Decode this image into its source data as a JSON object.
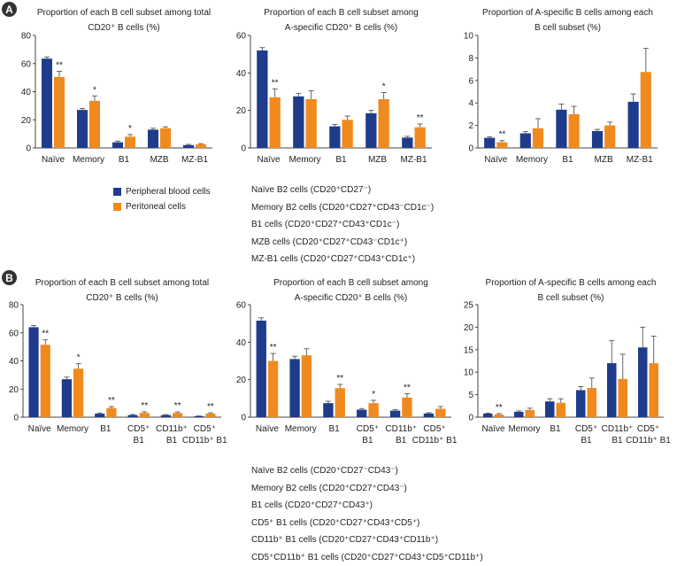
{
  "colors": {
    "peripheral": "#1F3C8C",
    "peritoneal": "#F08A1E",
    "axis": "#444444"
  },
  "legend": {
    "items": [
      "Peripheral blood cells",
      "Peritoneal cells"
    ]
  },
  "panels": [
    {
      "label": "A",
      "definitions": [
        "Naïve B2 cells (CD20⁺CD27⁻)",
        "Memory B2 cells (CD20⁺CD27⁺CD43⁻CD1c⁻)",
        "B1 cells (CD20⁺CD27⁺CD43⁺CD1c⁻)",
        "MZB cells (CD20⁺CD27⁺CD43⁻CD1c⁺)",
        "MZ-B1 cells (CD20⁺CD27⁺CD43⁺CD1c⁺)"
      ]
    },
    {
      "label": "B",
      "definitions": [
        "Naïve B2 cells (CD20⁺CD27⁻CD43⁻)",
        "Memory B2 cells (CD20⁺CD27⁺CD43⁻)",
        "B1 cells (CD20⁺CD27⁺CD43⁺)",
        "CD5⁺ B1 cells (CD20⁺CD27⁺CD43⁺CD5⁺)",
        "CD11b⁺ B1 cells (CD20⁺CD27⁺CD43⁺CD11b⁺)",
        "CD5⁺CD11b⁺ B1 cells (CD20⁺CD27⁺CD43⁺CD5⁺CD11b⁺)"
      ]
    }
  ],
  "chart_data": [
    {
      "id": "A1",
      "type": "bar",
      "title": [
        "Proportion of each B cell subset among total",
        "CD20⁺ B cells (%)"
      ],
      "categories": [
        [
          "Naïve"
        ],
        [
          "Memory"
        ],
        [
          "B1"
        ],
        [
          "MZB"
        ],
        [
          "MZ-B1"
        ]
      ],
      "yticks": [
        0,
        20,
        40,
        60,
        80
      ],
      "ylim": [
        0,
        80
      ],
      "series": [
        {
          "name": "Peripheral blood cells",
          "values": [
            63.5,
            27,
            4,
            13,
            2
          ],
          "errors": [
            1.2,
            1,
            0.8,
            1,
            0.5
          ]
        },
        {
          "name": "Peritoneal cells",
          "values": [
            50.5,
            33.5,
            8,
            14,
            2.5
          ],
          "errors": [
            4,
            3.5,
            1.5,
            1,
            0.5
          ]
        }
      ],
      "annotations": [
        "**",
        "*",
        "*",
        "",
        ""
      ]
    },
    {
      "id": "A2",
      "type": "bar",
      "title": [
        "Proportion of each B cell subset among",
        "A-specific CD20⁺ B cells (%)"
      ],
      "categories": [
        [
          "Naïve"
        ],
        [
          "Memory"
        ],
        [
          "B1"
        ],
        [
          "MZB"
        ],
        [
          "MZ-B1"
        ]
      ],
      "yticks": [
        0,
        20,
        40,
        60
      ],
      "ylim": [
        0,
        60
      ],
      "series": [
        {
          "name": "Peripheral blood cells",
          "values": [
            52,
            27.5,
            11.5,
            18.5,
            5.5
          ],
          "errors": [
            1.5,
            1.5,
            1,
            1.5,
            0.7
          ]
        },
        {
          "name": "Peritoneal cells",
          "values": [
            27,
            26,
            15,
            26,
            11
          ],
          "errors": [
            4.5,
            4.5,
            2,
            3.5,
            1.8
          ]
        }
      ],
      "annotations": [
        "**",
        "",
        "",
        "*",
        "**"
      ]
    },
    {
      "id": "A3",
      "type": "bar",
      "title": [
        "Proportion of A-specific B cells among each",
        "B cell subset (%)"
      ],
      "categories": [
        [
          "Naïve"
        ],
        [
          "Memory"
        ],
        [
          "B1"
        ],
        [
          "MZB"
        ],
        [
          "MZ-B1"
        ]
      ],
      "yticks": [
        0,
        2,
        4,
        6,
        8,
        10
      ],
      "ylim": [
        0,
        10
      ],
      "series": [
        {
          "name": "Peripheral blood cells",
          "values": [
            0.9,
            1.3,
            3.4,
            1.5,
            4.1
          ],
          "errors": [
            0.1,
            0.15,
            0.5,
            0.15,
            0.7
          ]
        },
        {
          "name": "Peritoneal cells",
          "values": [
            0.5,
            1.75,
            3,
            2,
            6.75
          ],
          "errors": [
            0.15,
            0.85,
            0.7,
            0.3,
            2.1
          ]
        }
      ],
      "annotations": [
        "**",
        "",
        "",
        "",
        ""
      ]
    },
    {
      "id": "B1",
      "type": "bar",
      "title": [
        "Proportion of each B cell subset among total",
        "CD20⁺ B cells (%)"
      ],
      "categories": [
        [
          "Naïve"
        ],
        [
          "Memory"
        ],
        [
          "B1"
        ],
        [
          "CD5⁺",
          "B1"
        ],
        [
          "CD11b⁺",
          "B1"
        ],
        [
          "CD5⁺",
          "CD11b⁺ B1"
        ]
      ],
      "yticks": [
        0,
        20,
        40,
        60,
        80
      ],
      "ylim": [
        0,
        80
      ],
      "series": [
        {
          "name": "Peripheral blood cells",
          "values": [
            64,
            27,
            2.5,
            1.5,
            1.5,
            0.7
          ],
          "errors": [
            1.2,
            1.5,
            0.5,
            0.4,
            0.3,
            0.2
          ]
        },
        {
          "name": "Peritoneal cells",
          "values": [
            51.5,
            34.5,
            6.5,
            3,
            3,
            2.5
          ],
          "errors": [
            3.5,
            3.5,
            1,
            0.8,
            0.7,
            0.6
          ]
        }
      ],
      "annotations": [
        "**",
        "*",
        "**",
        "**",
        "**",
        "**"
      ]
    },
    {
      "id": "B2",
      "type": "bar",
      "title": [
        "Proportion of each B cell subset among",
        "A-specific CD20⁺ B cells (%)"
      ],
      "categories": [
        [
          "Naïve"
        ],
        [
          "Memory"
        ],
        [
          "B1"
        ],
        [
          "CD5⁺",
          "B1"
        ],
        [
          "CD11b⁺",
          "B1"
        ],
        [
          "CD5⁺",
          "CD11b⁺ B1"
        ]
      ],
      "yticks": [
        0,
        20,
        40,
        60
      ],
      "ylim": [
        0,
        60
      ],
      "series": [
        {
          "name": "Peripheral blood cells",
          "values": [
            51.5,
            31,
            7.5,
            4,
            3.5,
            2
          ],
          "errors": [
            1.5,
            1.5,
            1,
            0.6,
            0.5,
            0.4
          ]
        },
        {
          "name": "Peritoneal cells",
          "values": [
            30,
            33,
            15.5,
            7.5,
            10.5,
            4.5
          ],
          "errors": [
            4,
            3.5,
            2,
            1.5,
            2,
            1.2
          ]
        }
      ],
      "annotations": [
        "**",
        "",
        "**",
        "*",
        "**",
        ""
      ]
    },
    {
      "id": "B3",
      "type": "bar",
      "title": [
        "Proportion of A-specific B cells among each",
        "B cell subset (%)"
      ],
      "categories": [
        [
          "Naïve"
        ],
        [
          "Memory"
        ],
        [
          "B1"
        ],
        [
          "CD5⁺",
          "B1"
        ],
        [
          "CD11b⁺",
          "B1"
        ],
        [
          "CD5⁺",
          "CD11b⁺ B1"
        ]
      ],
      "yticks": [
        0,
        5,
        10,
        15,
        20,
        25
      ],
      "ylim": [
        0,
        25
      ],
      "series": [
        {
          "name": "Peripheral blood cells",
          "values": [
            0.8,
            1.2,
            3.5,
            6,
            12,
            15.5
          ],
          "errors": [
            0.1,
            0.2,
            0.6,
            0.8,
            5,
            4.5
          ]
        },
        {
          "name": "Peritoneal cells",
          "values": [
            0.6,
            1.6,
            3.2,
            6.5,
            8.5,
            12
          ],
          "errors": [
            0.2,
            0.4,
            0.9,
            2.2,
            5.5,
            6
          ]
        }
      ],
      "annotations": [
        "**",
        "",
        "",
        "",
        "",
        ""
      ]
    }
  ]
}
